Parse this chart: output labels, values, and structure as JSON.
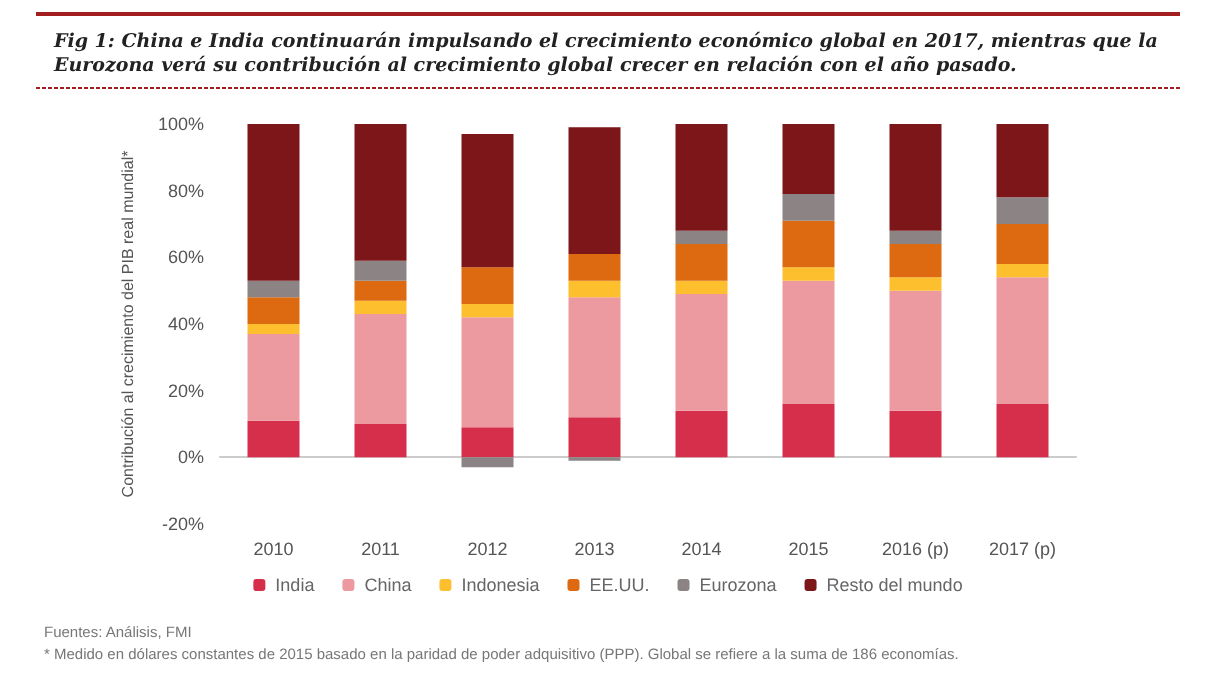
{
  "chart_data": {
    "type": "bar",
    "stacked": true,
    "title": "Fig 1: China e India continuarán impulsando el crecimiento económico global en 2017, mientras que la Eurozona verá su contribución al crecimiento global crecer en relación con el año pasado.",
    "ylabel": "Contribución al crecimiento del PIB real mundial*",
    "categories": [
      "2010",
      "2011",
      "2012",
      "2013",
      "2014",
      "2015",
      "2016 (p)",
      "2017 (p)"
    ],
    "series": [
      {
        "name": "India",
        "color": "#d62f4b",
        "values": [
          11,
          10,
          9,
          12,
          14,
          16,
          14,
          16
        ]
      },
      {
        "name": "China",
        "color": "#ec9aa0",
        "values": [
          26,
          33,
          33,
          36,
          35,
          37,
          36,
          38
        ]
      },
      {
        "name": "Indonesia",
        "color": "#fdbf2d",
        "values": [
          3,
          4,
          4,
          5,
          4,
          4,
          4,
          4
        ]
      },
      {
        "name": "EE.UU.",
        "color": "#dd6a10",
        "values": [
          8,
          6,
          11,
          8,
          11,
          14,
          10,
          12
        ]
      },
      {
        "name": "Eurozona",
        "color": "#8c8484",
        "values": [
          5,
          6,
          -3,
          -1,
          4,
          8,
          4,
          8
        ]
      },
      {
        "name": "Resto del mundo",
        "color": "#7d1618",
        "values": [
          47,
          41,
          40,
          38,
          32,
          21,
          32,
          22
        ]
      }
    ],
    "ylim": [
      -20,
      100
    ],
    "yticks": [
      {
        "value": -20,
        "label": "-20%"
      },
      {
        "value": 0,
        "label": "0%"
      },
      {
        "value": 20,
        "label": "20%"
      },
      {
        "value": 40,
        "label": "40%"
      },
      {
        "value": 60,
        "label": "60%"
      },
      {
        "value": 80,
        "label": "80%"
      },
      {
        "value": 100,
        "label": "100%"
      }
    ],
    "legend": "bottom",
    "annotations": [
      "Fuentes: Análisis, FMI",
      "* Medido en dólares constantes de 2015 basado en la paridad de poder adquisitivo (PPP). Global se refiere a la suma de 186 economías."
    ]
  }
}
